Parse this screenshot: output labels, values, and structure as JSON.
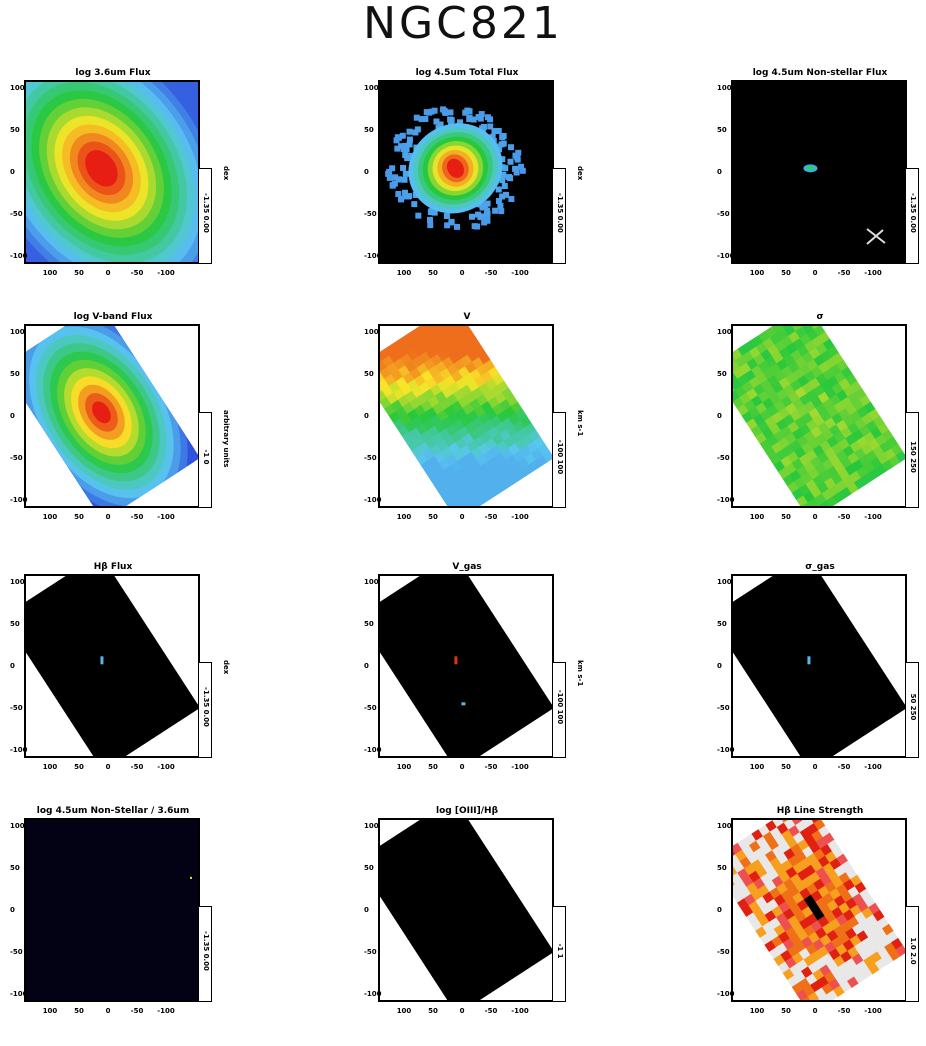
{
  "figure_title": "NGC821",
  "chart_data": [
    {
      "type": "heatmap",
      "title": "log 3.6um Flux",
      "ylim": [
        -100,
        100
      ],
      "yticks": [
        "100",
        "50",
        "0",
        "-50",
        "-100"
      ],
      "xticks": [
        "100",
        "50",
        "0",
        "-50",
        "-100"
      ],
      "colorbar": {
        "range": "-1.35 0.00",
        "unit": "dex"
      },
      "map": {
        "kind": "elliptical-galaxy",
        "orient": -35
      }
    },
    {
      "type": "heatmap",
      "title": "log 4.5um Total Flux",
      "ylim": [
        -100,
        100
      ],
      "yticks": [
        "100",
        "50",
        "0",
        "-50",
        "-100"
      ],
      "xticks": [
        "100",
        "50",
        "0",
        "-50",
        "-100"
      ],
      "colorbar": {
        "range": "-1.35 0.00",
        "unit": "dex"
      },
      "map": {
        "kind": "noisy-galaxy"
      }
    },
    {
      "type": "heatmap",
      "title": "log 4.5um Non-stellar Flux",
      "ylim": [
        -100,
        100
      ],
      "yticks": [
        "100",
        "50",
        "0",
        "-50",
        "-100"
      ],
      "xticks": [
        "100",
        "50",
        "0",
        "-50",
        "-100"
      ],
      "colorbar": {
        "range": "-1.35 0.00",
        "unit": "dex"
      },
      "map": {
        "kind": "black-spot"
      }
    },
    {
      "type": "heatmap",
      "title": "log V-band Flux",
      "ylim": [
        -100,
        100
      ],
      "yticks": [
        "100",
        "50",
        "0",
        "-50",
        "-100"
      ],
      "xticks": [
        "100",
        "50",
        "0",
        "-50",
        "-100"
      ],
      "colorbar": {
        "range": "-1 0",
        "unit": "arbitrary units"
      },
      "map": {
        "kind": "sauron-galaxy"
      }
    },
    {
      "type": "heatmap",
      "title": "V",
      "ylim": [
        -100,
        100
      ],
      "yticks": [
        "100",
        "50",
        "0",
        "-50",
        "-100"
      ],
      "xticks": [
        "100",
        "50",
        "0",
        "-50",
        "-100"
      ],
      "colorbar": {
        "range": "-100 100",
        "unit": "km s-1"
      },
      "map": {
        "kind": "velocity"
      }
    },
    {
      "type": "heatmap",
      "title": "σ",
      "ylim": [
        -100,
        100
      ],
      "yticks": [
        "100",
        "50",
        "0",
        "-50",
        "-100"
      ],
      "xticks": [
        "100",
        "50",
        "0",
        "-50",
        "-100"
      ],
      "colorbar": {
        "range": "150 250",
        "unit": "km s-1"
      },
      "map": {
        "kind": "dispersion"
      }
    },
    {
      "type": "heatmap",
      "title": "Hβ Flux",
      "ylim": [
        -100,
        100
      ],
      "yticks": [
        "100",
        "50",
        "0",
        "-50",
        "-100"
      ],
      "xticks": [
        "100",
        "50",
        "0",
        "-50",
        "-100"
      ],
      "colorbar": {
        "range": "-1.35 0.00",
        "unit": "dex"
      },
      "map": {
        "kind": "black-field",
        "dot": "#5ab4e8"
      }
    },
    {
      "type": "heatmap",
      "title": "V_gas",
      "ylim": [
        -100,
        100
      ],
      "yticks": [
        "100",
        "50",
        "0",
        "-50",
        "-100"
      ],
      "xticks": [
        "100",
        "50",
        "0",
        "-50",
        "-100"
      ],
      "colorbar": {
        "range": "-100 100",
        "unit": "km s-1"
      },
      "map": {
        "kind": "black-field",
        "dot": "#e03020",
        "dot2": "#5ab4e8"
      }
    },
    {
      "type": "heatmap",
      "title": "σ_gas",
      "ylim": [
        -100,
        100
      ],
      "yticks": [
        "100",
        "50",
        "0",
        "-50",
        "-100"
      ],
      "xticks": [
        "100",
        "50",
        "0",
        "-50",
        "-100"
      ],
      "colorbar": {
        "range": "50 250",
        "unit": "km s-1"
      },
      "map": {
        "kind": "black-field",
        "dot": "#5ab4e8"
      }
    },
    {
      "type": "heatmap",
      "title": "log 4.5um Non-Stellar / 3.6um",
      "ylim": [
        -100,
        100
      ],
      "yticks": [
        "100",
        "50",
        "0",
        "-50",
        "-100"
      ],
      "xticks": [
        "100",
        "50",
        "0",
        "-50",
        "-100"
      ],
      "colorbar": {
        "range": "-1.35 0.00",
        "unit": ""
      },
      "map": {
        "kind": "all-black"
      }
    },
    {
      "type": "heatmap",
      "title": "log [OIII]/Hβ",
      "ylim": [
        -100,
        100
      ],
      "yticks": [
        "100",
        "50",
        "0",
        "-50",
        "-100"
      ],
      "xticks": [
        "100",
        "50",
        "0",
        "-50",
        "-100"
      ],
      "colorbar": {
        "range": "-1 1",
        "unit": ""
      },
      "map": {
        "kind": "black-field-nodot"
      }
    },
    {
      "type": "heatmap",
      "title": "Hβ Line Strength",
      "ylim": [
        -100,
        100
      ],
      "yticks": [
        "100",
        "50",
        "0",
        "-50",
        "-100"
      ],
      "xticks": [
        "100",
        "50",
        "0",
        "-50",
        "-100"
      ],
      "colorbar": {
        "range": "1.0 2.0",
        "unit": ""
      },
      "map": {
        "kind": "line-strength"
      }
    }
  ]
}
